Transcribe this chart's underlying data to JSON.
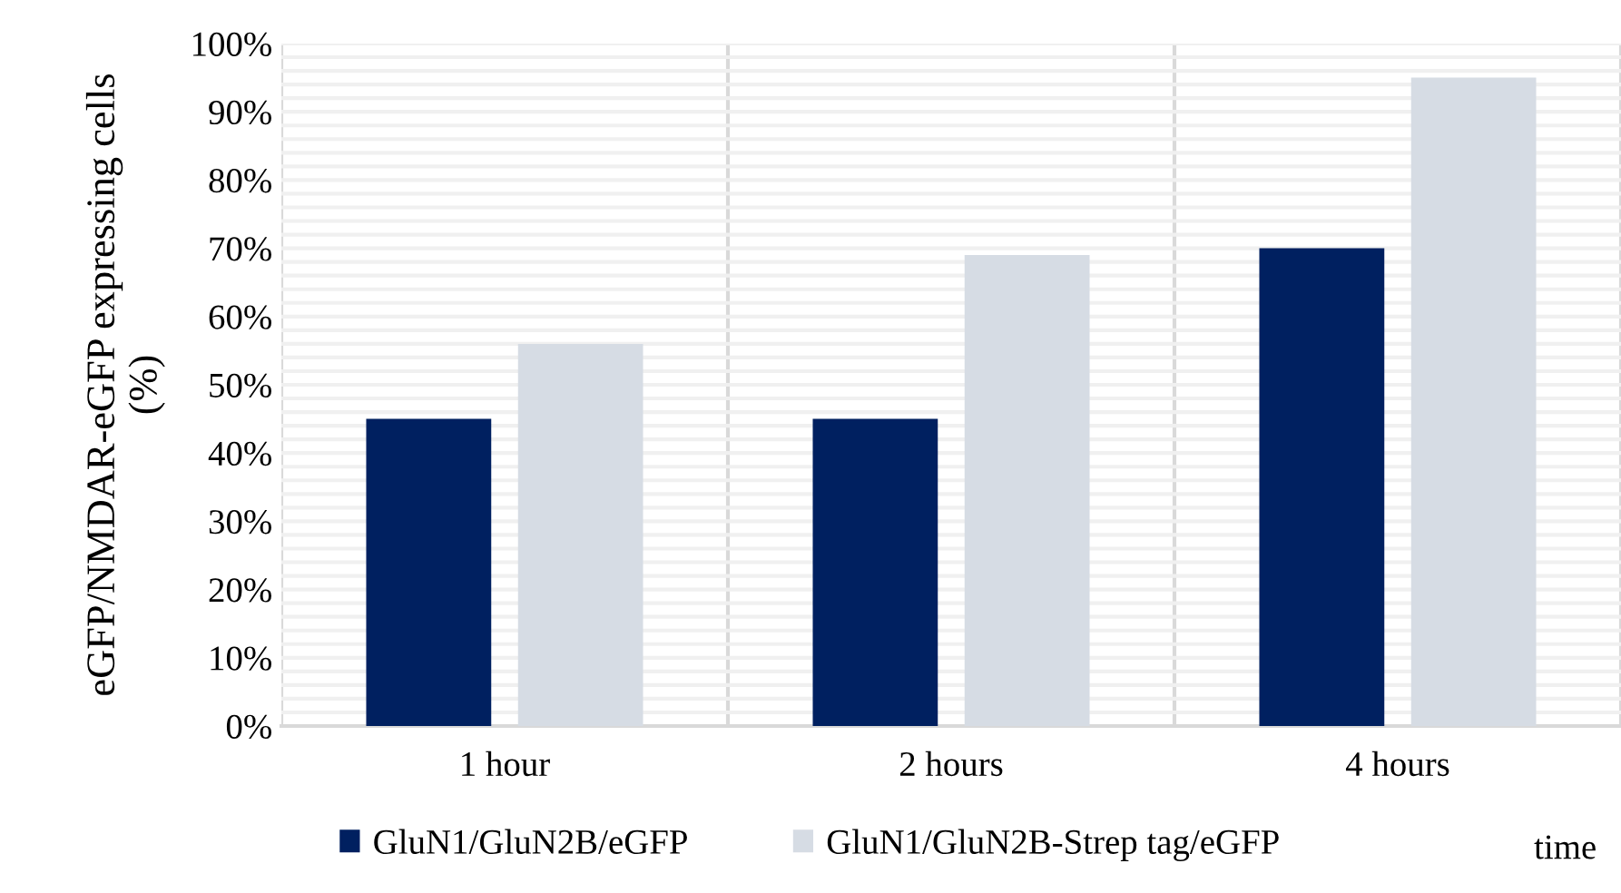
{
  "chart_data": {
    "type": "bar",
    "ylabel": "eGFP/NMDAR-eGFP expressing cells\n(%)",
    "xlabel": "time",
    "categories": [
      "1 hour",
      "2 hours",
      "4 hours"
    ],
    "series": [
      {
        "name": "GluN1/GluN2B/eGFP",
        "color": "#002060",
        "values": [
          45,
          45,
          70
        ]
      },
      {
        "name": "GluN1/GluN2B-Strep tag/eGFP",
        "color": "#d6dce4",
        "values": [
          56,
          69,
          95
        ]
      }
    ],
    "ylim": [
      0,
      100
    ],
    "yticks": [
      {
        "value": 0,
        "label": "0%"
      },
      {
        "value": 10,
        "label": "10%"
      },
      {
        "value": 20,
        "label": "20%"
      },
      {
        "value": 30,
        "label": "30%"
      },
      {
        "value": 40,
        "label": "40%"
      },
      {
        "value": 50,
        "label": "50%"
      },
      {
        "value": 60,
        "label": "60%"
      },
      {
        "value": 70,
        "label": "70%"
      },
      {
        "value": 80,
        "label": "80%"
      },
      {
        "value": 90,
        "label": "90%"
      },
      {
        "value": 100,
        "label": "100%"
      }
    ],
    "grid": true,
    "legend": "bottom"
  }
}
